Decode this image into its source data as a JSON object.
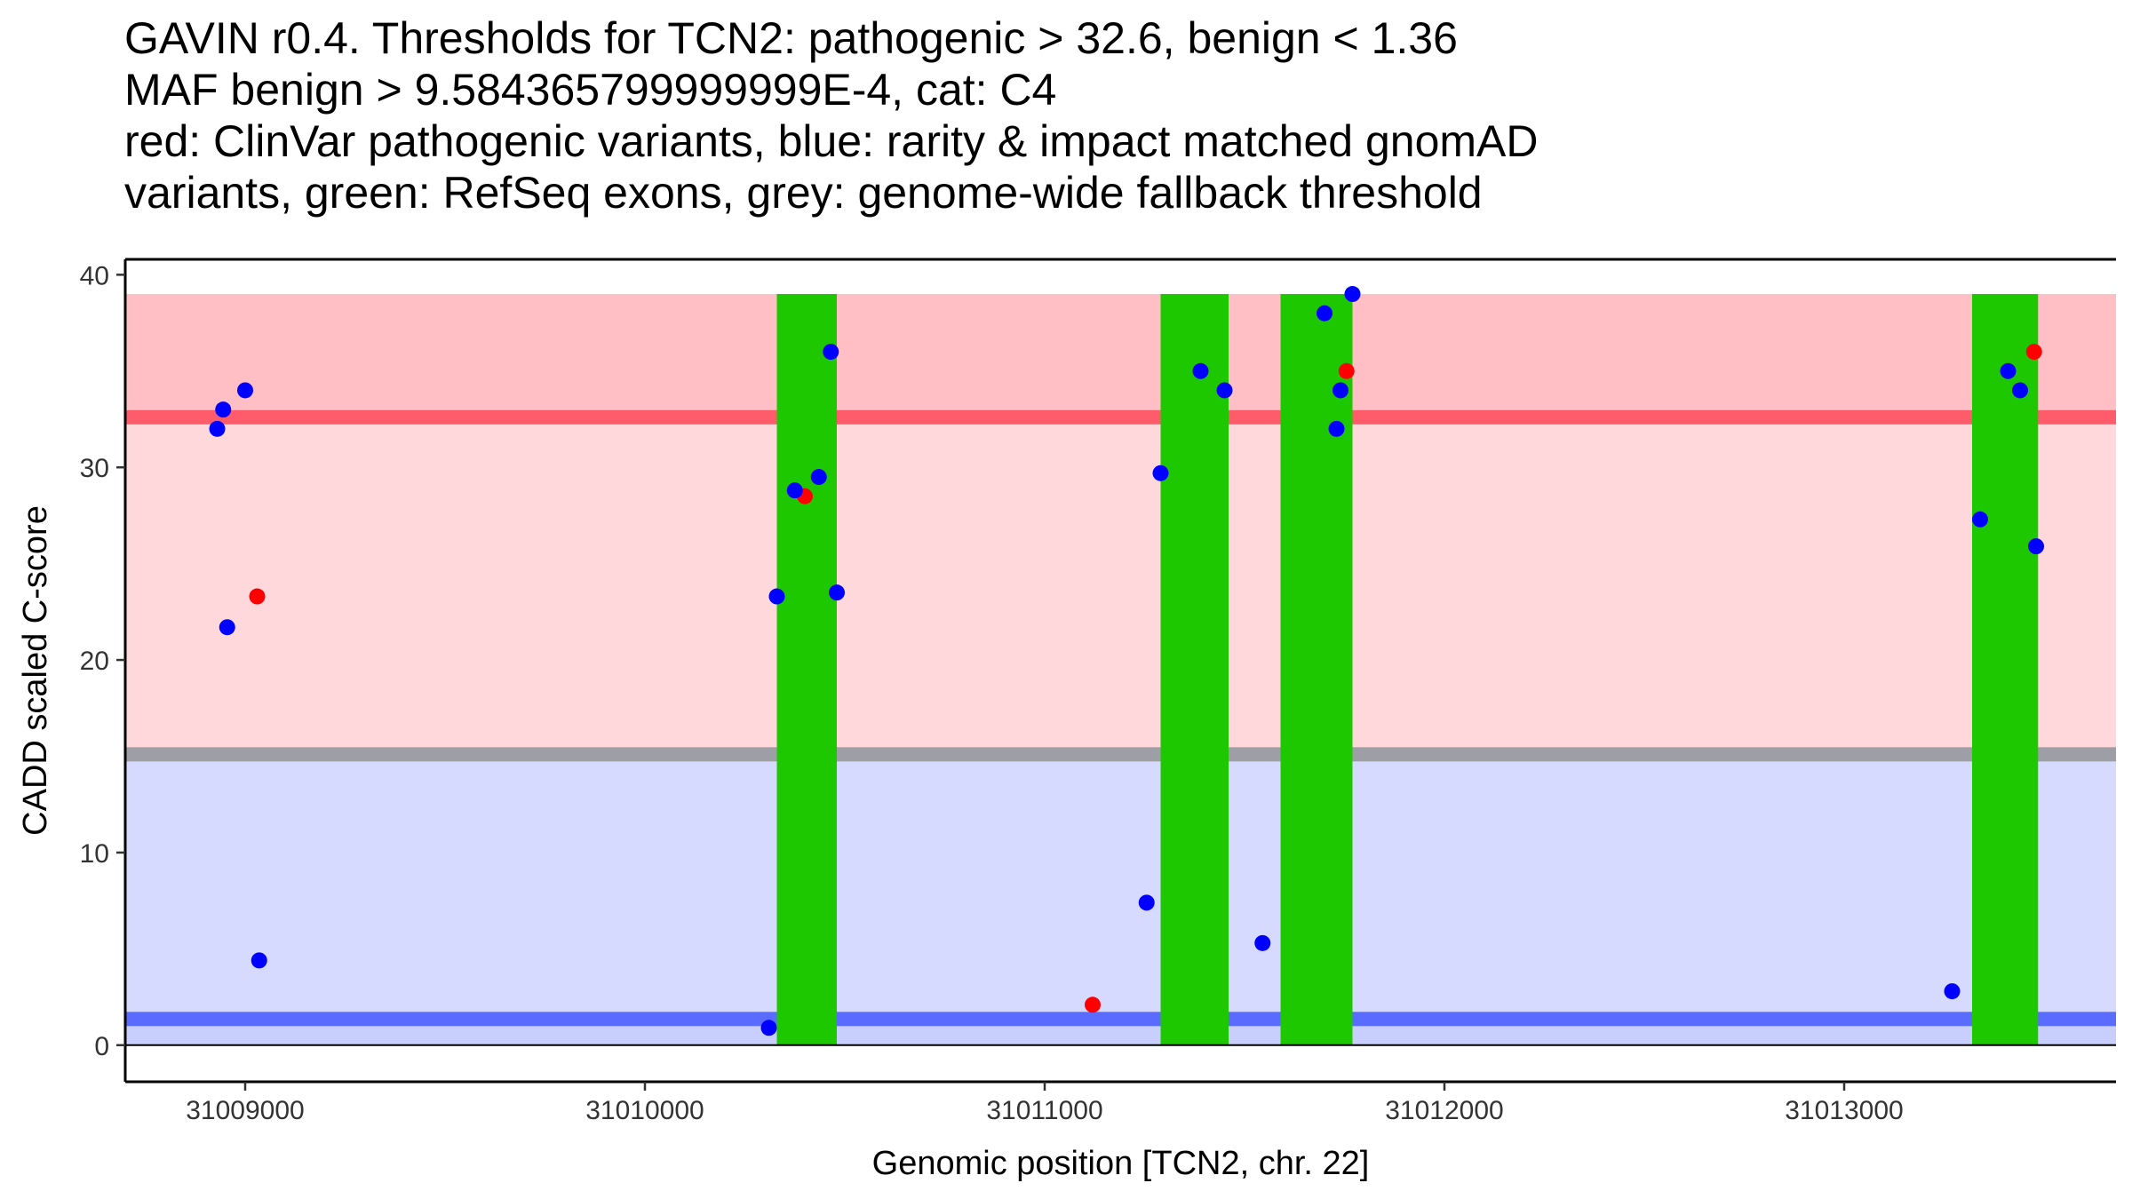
{
  "chart_data": {
    "type": "scatter",
    "title_lines": [
      "GAVIN r0.4. Thresholds for TCN2: pathogenic > 32.6, benign < 1.36",
      "MAF benign > 9.584365799999999E-4, cat: C4",
      "red: ClinVar pathogenic variants, blue: rarity & impact matched gnomAD",
      "variants, green: RefSeq exons, grey: genome-wide fallback threshold"
    ],
    "xlabel": "Genomic position [TCN2, chr. 22]",
    "ylabel": "CADD scaled C-score",
    "xlim": [
      31008700,
      31013680
    ],
    "ylim": [
      -1.9,
      40.8
    ],
    "x_ticks": [
      31009000,
      31010000,
      31011000,
      31012000,
      31013000
    ],
    "x_tick_labels": [
      "31009000",
      "31010000",
      "31011000",
      "31012000",
      "31013000"
    ],
    "y_ticks": [
      0,
      10,
      20,
      30,
      40
    ],
    "y_tick_labels": [
      "0",
      "10",
      "20",
      "30",
      "40"
    ],
    "regions": [
      {
        "name": "pathogenic-region",
        "y0": 32.6,
        "y1": 39,
        "color": "#ffbfc5"
      },
      {
        "name": "pathogenic-fallback-region",
        "y0": 15.1,
        "y1": 32.6,
        "color": "#ffd8dc"
      },
      {
        "name": "benign-fallback-region",
        "y0": 1.36,
        "y1": 15.1,
        "color": "#d6daff"
      },
      {
        "name": "benign-region",
        "y0": 0,
        "y1": 1.36,
        "color": "#c9cffc"
      }
    ],
    "threshold_lines": [
      {
        "name": "pathogenic-threshold",
        "y": 32.6,
        "color": "#ff5c6b"
      },
      {
        "name": "genome-wide-fallback-threshold",
        "y": 15.1,
        "color": "#9e9ea6"
      },
      {
        "name": "benign-threshold",
        "y": 1.36,
        "color": "#5a6cff"
      }
    ],
    "exons": [
      {
        "start": 31010330,
        "end": 31010480
      },
      {
        "start": 31011290,
        "end": 31011460
      },
      {
        "start": 31011590,
        "end": 31011770
      },
      {
        "start": 31013320,
        "end": 31013485
      }
    ],
    "exon_color": "#1ec800",
    "exon_ymax": 39,
    "series": [
      {
        "name": "ClinVar pathogenic variants",
        "color": "#ff0000",
        "points": [
          {
            "x": 31009030,
            "y": 23.3
          },
          {
            "x": 31010400,
            "y": 28.5
          },
          {
            "x": 31011120,
            "y": 2.1
          },
          {
            "x": 31011755,
            "y": 35.0
          },
          {
            "x": 31013475,
            "y": 36.0
          }
        ]
      },
      {
        "name": "rarity & impact matched gnomAD variants",
        "color": "#0000ff",
        "points": [
          {
            "x": 31008930,
            "y": 32.0
          },
          {
            "x": 31008945,
            "y": 33.0
          },
          {
            "x": 31008955,
            "y": 21.7
          },
          {
            "x": 31009000,
            "y": 34.0
          },
          {
            "x": 31009035,
            "y": 4.4
          },
          {
            "x": 31010310,
            "y": 0.9
          },
          {
            "x": 31010330,
            "y": 23.3
          },
          {
            "x": 31010375,
            "y": 28.8
          },
          {
            "x": 31010435,
            "y": 29.5
          },
          {
            "x": 31010465,
            "y": 36.0
          },
          {
            "x": 31010480,
            "y": 23.5
          },
          {
            "x": 31011255,
            "y": 7.4
          },
          {
            "x": 31011290,
            "y": 29.7
          },
          {
            "x": 31011390,
            "y": 35.0
          },
          {
            "x": 31011450,
            "y": 34.0
          },
          {
            "x": 31011545,
            "y": 5.3
          },
          {
            "x": 31011700,
            "y": 38.0
          },
          {
            "x": 31011730,
            "y": 32.0
          },
          {
            "x": 31011740,
            "y": 34.0
          },
          {
            "x": 31011770,
            "y": 39.0
          },
          {
            "x": 31013270,
            "y": 2.8
          },
          {
            "x": 31013340,
            "y": 27.3
          },
          {
            "x": 31013410,
            "y": 35.0
          },
          {
            "x": 31013440,
            "y": 34.0
          },
          {
            "x": 31013480,
            "y": 25.9
          }
        ]
      }
    ]
  }
}
